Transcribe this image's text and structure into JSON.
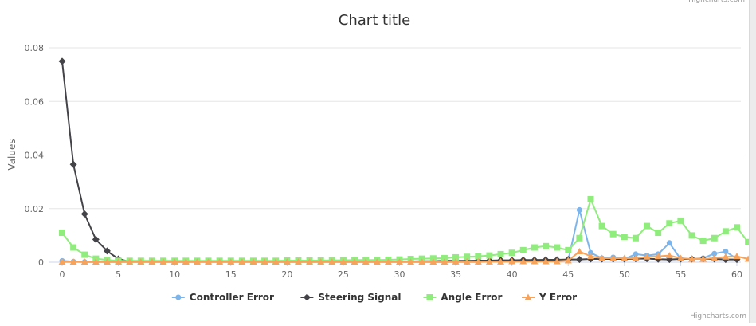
{
  "credits": "Highcharts.com",
  "chart_data": {
    "type": "line",
    "title": "Chart title",
    "ylabel": "Values",
    "xlabel": "",
    "xlim": [
      0,
      60
    ],
    "ylim": [
      0,
      0.08
    ],
    "x_ticks": [
      "0",
      "5",
      "10",
      "15",
      "20",
      "25",
      "30",
      "35",
      "40",
      "45",
      "50",
      "55",
      "60"
    ],
    "y_ticks": [
      "0",
      "0.02",
      "0.04",
      "0.06",
      "0.08"
    ],
    "grid": true,
    "legend_position": "bottom",
    "series": [
      {
        "name": "Controller Error",
        "color": "#7cb5ec",
        "marker": "circle",
        "values": [
          0.0005,
          0.0002,
          0.0001,
          0.0001,
          0.0001,
          0.0001,
          0.0001,
          0.0001,
          0.0001,
          0.0001,
          0.0001,
          0.0001,
          0.0001,
          0.0001,
          0.0001,
          0.0001,
          0.0001,
          0.0001,
          0.0001,
          0.0001,
          0.0001,
          0.0001,
          0.0001,
          0.0001,
          0.0001,
          0.0001,
          0.0001,
          0.0001,
          0.0001,
          0.0001,
          0.0001,
          0.0001,
          0.0001,
          0.0001,
          0.0001,
          0.0001,
          0.0001,
          0.0001,
          0.0002,
          0.0002,
          0.0002,
          0.0003,
          0.0004,
          0.0005,
          0.0003,
          0.0008,
          0.0195,
          0.0035,
          0.0015,
          0.0018,
          0.0012,
          0.003,
          0.0025,
          0.003,
          0.0072,
          0.0012,
          0.0012,
          0.0015,
          0.0032,
          0.004,
          0.0012
        ]
      },
      {
        "name": "Steering Signal",
        "color": "#434348",
        "marker": "diamond",
        "values": [
          0.075,
          0.0365,
          0.018,
          0.0085,
          0.0042,
          0.0012,
          0.0002,
          0.0002,
          0.0002,
          0.0002,
          0.0002,
          0.0002,
          0.0002,
          0.0002,
          0.0002,
          0.0002,
          0.0002,
          0.0002,
          0.0002,
          0.0002,
          0.0002,
          0.0002,
          0.0002,
          0.0002,
          0.0002,
          0.0002,
          0.0002,
          0.0002,
          0.0002,
          0.0003,
          0.0003,
          0.0003,
          0.0004,
          0.0004,
          0.0005,
          0.0005,
          0.0005,
          0.0006,
          0.0006,
          0.0007,
          0.0007,
          0.0008,
          0.0008,
          0.0009,
          0.0009,
          0.001,
          0.001,
          0.0012,
          0.0012,
          0.0012,
          0.0012,
          0.0013,
          0.0013,
          0.0011,
          0.001,
          0.0012,
          0.0012,
          0.0012,
          0.0012,
          0.001,
          0.001
        ]
      },
      {
        "name": "Angle Error",
        "color": "#90ed7d",
        "marker": "square",
        "values": [
          0.011,
          0.0055,
          0.0028,
          0.0013,
          0.0008,
          0.0005,
          0.0005,
          0.0005,
          0.0005,
          0.0005,
          0.0005,
          0.0005,
          0.0005,
          0.0005,
          0.0005,
          0.0005,
          0.0005,
          0.0005,
          0.0005,
          0.0005,
          0.0006,
          0.0006,
          0.0006,
          0.0006,
          0.0007,
          0.0007,
          0.0008,
          0.0008,
          0.0008,
          0.0009,
          0.001,
          0.0012,
          0.0013,
          0.0014,
          0.0015,
          0.0018,
          0.002,
          0.0022,
          0.0025,
          0.003,
          0.0035,
          0.0045,
          0.0055,
          0.006,
          0.0055,
          0.0045,
          0.009,
          0.0235,
          0.0135,
          0.0105,
          0.0095,
          0.009,
          0.0135,
          0.011,
          0.0145,
          0.0155,
          0.01,
          0.008,
          0.009,
          0.0115,
          0.013,
          0.0075
        ]
      },
      {
        "name": "Y Error",
        "color": "#f7a35c",
        "marker": "triangle",
        "values": [
          0.0001,
          0.0001,
          0.0001,
          0.0001,
          0.0001,
          0.0001,
          0.0001,
          0.0001,
          0.0001,
          0.0001,
          0.0001,
          0.0001,
          0.0001,
          0.0001,
          0.0001,
          0.0001,
          0.0001,
          0.0001,
          0.0001,
          0.0001,
          0.0001,
          0.0001,
          0.0001,
          0.0001,
          0.0001,
          0.0001,
          0.0001,
          0.0001,
          0.0001,
          0.0001,
          0.0001,
          0.0001,
          0.0001,
          0.0001,
          0.0001,
          0.0002,
          0.0002,
          0.0002,
          0.0002,
          0.0002,
          0.0003,
          0.0003,
          0.0003,
          0.0003,
          0.0003,
          0.0006,
          0.004,
          0.0022,
          0.0015,
          0.0015,
          0.0015,
          0.0015,
          0.002,
          0.0022,
          0.0025,
          0.0015,
          0.0012,
          0.0012,
          0.0015,
          0.002,
          0.0022,
          0.0012
        ]
      }
    ]
  }
}
